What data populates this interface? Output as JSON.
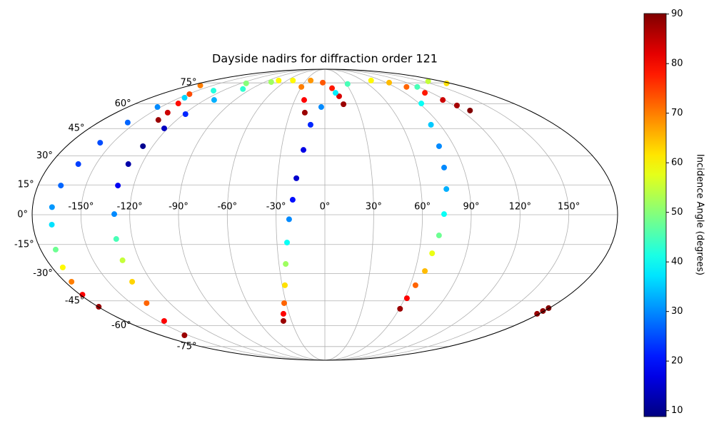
{
  "chart_data": {
    "type": "scatter",
    "projection": "mollweide",
    "title": "Dayside nadirs for diffraction order 121",
    "colorbar_label": "Incidence Angle (degrees)",
    "colormap": "jet",
    "clim": [
      8.8,
      90.1
    ],
    "cticks": [
      10,
      20,
      30,
      40,
      50,
      60,
      70,
      80,
      90
    ],
    "grid": true,
    "xlim": [
      -180,
      180
    ],
    "ylim": [
      -90,
      90
    ],
    "xticks": [
      {
        "value": -150,
        "label": "-150°"
      },
      {
        "value": -120,
        "label": "-120°"
      },
      {
        "value": -90,
        "label": "-90°"
      },
      {
        "value": -60,
        "label": "-60°"
      },
      {
        "value": -30,
        "label": "-30°"
      },
      {
        "value": 0,
        "label": "0°"
      },
      {
        "value": 30,
        "label": "30°"
      },
      {
        "value": 60,
        "label": "60°"
      },
      {
        "value": 90,
        "label": "90°"
      },
      {
        "value": 120,
        "label": "120°"
      },
      {
        "value": 150,
        "label": "150°"
      }
    ],
    "yticks": [
      {
        "value": -75,
        "label": "-75°"
      },
      {
        "value": -60,
        "label": "-60°"
      },
      {
        "value": -45,
        "label": "-45°"
      },
      {
        "value": -30,
        "label": "-30°"
      },
      {
        "value": -15,
        "label": "-15°"
      },
      {
        "value": 0,
        "label": "0°"
      },
      {
        "value": 15,
        "label": "15°"
      },
      {
        "value": 30,
        "label": "30°"
      },
      {
        "value": 45,
        "label": "45°"
      },
      {
        "value": 60,
        "label": "60°"
      },
      {
        "value": 75,
        "label": "75°"
      }
    ],
    "series": [
      {
        "x": [
          -73.6,
          -112.5,
          -131,
          -145,
          -153,
          -156.7,
          -159,
          -161.7,
          -165.7,
          -168,
          -168.3,
          -170.5,
          -172.9,
          -175.5,
          -178.4,
          -179.5
        ],
        "y": [
          77,
          74.6,
          69,
          64,
          57.9,
          48.5,
          37.1,
          25.7,
          14.7,
          3.8,
          -5,
          -17.6,
          -26.8,
          -34.4,
          -41.5,
          -48.4
        ],
        "values": [
          60,
          50,
          42,
          36,
          30,
          27,
          25,
          24,
          27,
          31,
          37,
          48,
          60,
          70,
          80,
          88
        ]
      },
      {
        "x": [
          -134.9,
          -135.6,
          -139.8,
          -148.7,
          -166.6
        ],
        "y": [
          50,
          54.4,
          60.2,
          66.5,
          72.9
        ],
        "values": [
          88,
          84,
          79,
          74,
          70
        ]
      },
      {
        "x": [
          -154.2,
          -144.6,
          -138,
          -133.5,
          -131,
          -130.1,
          -129.5,
          -129.9,
          -128.9,
          -126.8,
          -122.7,
          -118.6,
          -110.7,
          -100,
          -80.4,
          -50.9,
          -30.2,
          -20.7,
          -17.3
        ],
        "y": [
          -66.5,
          -57,
          -46.3,
          -34.4,
          -23.1,
          -12.2,
          0.3,
          14.7,
          25.7,
          35.2,
          45.1,
          53.5,
          62.5,
          70.2,
          75.7,
          77,
          71.8,
          62.5,
          54.4
        ],
        "values": [
          88,
          80,
          72,
          63,
          55,
          45,
          30,
          18,
          12,
          10,
          14,
          22,
          33,
          43,
          52,
          60,
          70,
          80,
          88
        ]
      },
      {
        "x": [
          -22.6,
          -3.1,
          8.9,
          15.1,
          17.6
        ],
        "y": [
          77,
          75.2,
          70.8,
          65,
          59.7
        ],
        "values": [
          68,
          73,
          78,
          83,
          88
        ]
      },
      {
        "x": [
          31.8,
          12,
          -3.3,
          -11.2,
          -14.7,
          -18.1,
          -19.9,
          -22,
          -23.7,
          -25.6,
          -28.1,
          -31.5,
          -34.8,
          -37.3
        ],
        "y": [
          74.1,
          67.4,
          57.9,
          47.2,
          33.2,
          18.4,
          7.5,
          -2.3,
          -14,
          -25,
          -36.3,
          -46.3,
          -52.6,
          -57
        ],
        "values": [
          45,
          38,
          30,
          22,
          17,
          15,
          20,
          30,
          40,
          52,
          62,
          72,
          80,
          88
        ]
      },
      {
        "x": [
          73.6,
          94.2,
          105,
          112.5,
          117.9,
          122.9,
          127.8
        ],
        "y": [
          77,
          75.2,
          71.8,
          67.4,
          62.5,
          58.9,
          55.7
        ],
        "values": [
          60,
          65,
          72,
          78,
          84,
          87,
          90
        ]
      },
      {
        "x": [
          173.9,
          159,
          118.8,
          92,
          83,
          79.6,
          77.5,
          75.9,
          73.3,
          70.9,
          68.4,
          66.7,
          63.7,
          61.6,
          60.6
        ],
        "y": [
          74.6,
          76.3,
          71.8,
          60.2,
          47.2,
          35.2,
          23.9,
          12.9,
          0.3,
          -10.4,
          -19.5,
          -28.7,
          -36.3,
          -43.5,
          -49.6
        ],
        "values": [
          62,
          55,
          45,
          40,
          35,
          30,
          30,
          33,
          40,
          48,
          58,
          65,
          72,
          80,
          88
        ]
      },
      {
        "x": [
          178.2,
          178.8,
          179.4
        ],
        "y": [
          -52.6,
          -50.9,
          -49.2
        ],
        "values": [
          88,
          89,
          90
        ]
      }
    ]
  }
}
